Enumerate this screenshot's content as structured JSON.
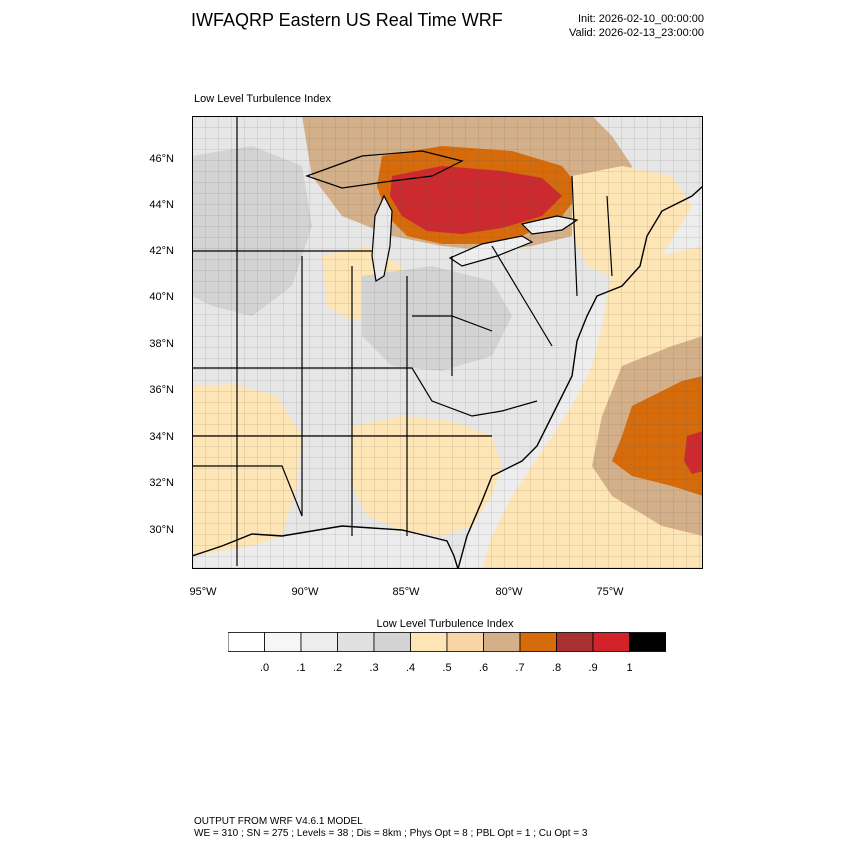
{
  "header": {
    "title": "IWFAQRP Eastern US Real Time WRF",
    "init": "Init: 2026-02-10_00:00:00",
    "valid": "Valid: 2026-02-13_23:00:00"
  },
  "map": {
    "subtitle": "Low Level Turbulence Index",
    "lat_labels": [
      "46°N",
      "44°N",
      "42°N",
      "40°N",
      "38°N",
      "36°N",
      "34°N",
      "32°N",
      "30°N"
    ],
    "lon_labels": [
      "95°W",
      "90°W",
      "85°W",
      "80°W",
      "75°W"
    ],
    "region": "Eastern United States",
    "colors": {
      "land_low": "#e6e6e6",
      "land_mid": "#d2d2d2",
      "pale_orange": "#fde5b5",
      "tan": "#d4b08a",
      "orange": "#d56b0b",
      "red": "#cc2a2e",
      "borders": "#000000"
    }
  },
  "colorbar": {
    "title": "Low Level Turbulence Index",
    "ticks": [
      ".0",
      ".1",
      ".2",
      ".3",
      ".4",
      ".5",
      ".6",
      ".7",
      ".8",
      ".9",
      "1"
    ],
    "colors": [
      "#ffffff",
      "#f6f6f6",
      "#ededed",
      "#e0e0e0",
      "#d3d3d3",
      "#fee5b5",
      "#f7d5a5",
      "#d4b08a",
      "#d56b0b",
      "#a83030",
      "#d2232a",
      "#000000"
    ]
  },
  "footer": {
    "line1": "OUTPUT FROM WRF V4.6.1 MODEL",
    "line2": "WE = 310 ; SN = 275 ; Levels = 38 ; Dis = 8km ; Phys Opt = 8 ; PBL Opt = 1 ; Cu Opt = 3"
  }
}
